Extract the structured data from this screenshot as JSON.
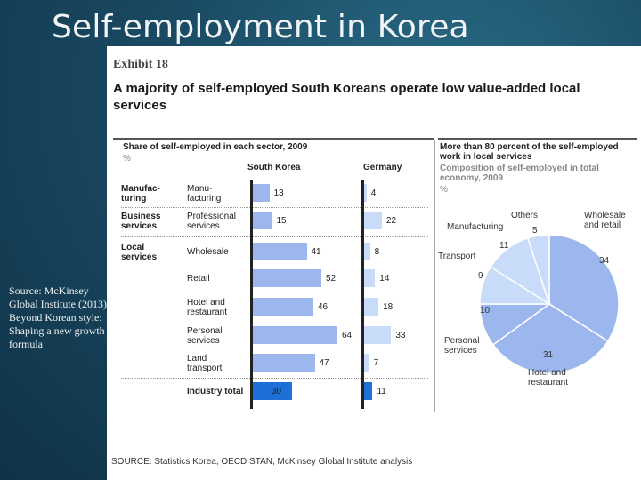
{
  "slide": {
    "title": "Self-employment in Korea",
    "source_note": "Source: McKinsey Global Institute (2013) Beyond Korean style: Shaping a new growth formula"
  },
  "exhibit": {
    "label": "Exhibit 18",
    "heading": "A majority of self-employed South Koreans operate low value-added local services",
    "footer": "SOURCE: Statistics Korea, OECD STAN, McKinsey Global Institute analysis"
  },
  "colors": {
    "south_korea_bar": "#9cb6ee",
    "germany_bar": "#c8dcfa",
    "industry_total_bar": "#1f6fd8",
    "pie_light": "#c8dcfa",
    "pie_dark": "#9cb6ee"
  },
  "chart_data": [
    {
      "type": "bar",
      "title": "Share of self-employed in each sector, 2009",
      "unit": "%",
      "series_names": [
        "South Korea",
        "Germany"
      ],
      "groups": [
        "Manufac-\nturing",
        "Business\nservices",
        "Local\nservices"
      ],
      "rows": [
        {
          "group": "Manufac-\nturing",
          "label": "Manu-\nfacturing",
          "south_korea": 13,
          "germany": 4
        },
        {
          "group": "Business\nservices",
          "label": "Professional\nservices",
          "south_korea": 15,
          "germany": 22
        },
        {
          "group": "Local\nservices",
          "label": "Wholesale",
          "south_korea": 41,
          "germany": 8
        },
        {
          "group": "",
          "label": "Retail",
          "south_korea": 52,
          "germany": 14
        },
        {
          "group": "",
          "label": "Hotel and\nrestaurant",
          "south_korea": 46,
          "germany": 18
        },
        {
          "group": "",
          "label": "Personal\nservices",
          "south_korea": 64,
          "germany": 33
        },
        {
          "group": "",
          "label": "Land\ntransport",
          "south_korea": 47,
          "germany": 7
        },
        {
          "group": "",
          "label": "Industry total",
          "south_korea": 30,
          "germany": 11,
          "highlight": true
        }
      ],
      "value_labels": {
        "south_korea": [
          "13",
          "15",
          "41",
          "52",
          "46",
          "64",
          "47",
          "30"
        ],
        "germany": [
          "4",
          "22",
          "8",
          "14",
          "18",
          "33",
          "7",
          "11"
        ]
      }
    },
    {
      "type": "pie",
      "title": "More than 80 percent of the self-employed work in local services",
      "subtitle": "Composition of self-employed in total economy, 2009",
      "unit": "%",
      "slices": [
        {
          "label": "Wholesale\nand retail",
          "value": 34,
          "value_label": "34",
          "shade": "dark"
        },
        {
          "label": "Hotel and\nrestaurant",
          "value": 31,
          "value_label": "31",
          "shade": "dark"
        },
        {
          "label": "Personal\nservices",
          "value": 10,
          "value_label": "10",
          "shade": "dark"
        },
        {
          "label": "Transport",
          "value": 9,
          "value_label": "9",
          "shade": "light"
        },
        {
          "label": "Manufacturing",
          "value": 11,
          "value_label": "11",
          "shade": "light"
        },
        {
          "label": "Others",
          "value": 5,
          "value_label": "5",
          "shade": "light"
        }
      ]
    }
  ]
}
